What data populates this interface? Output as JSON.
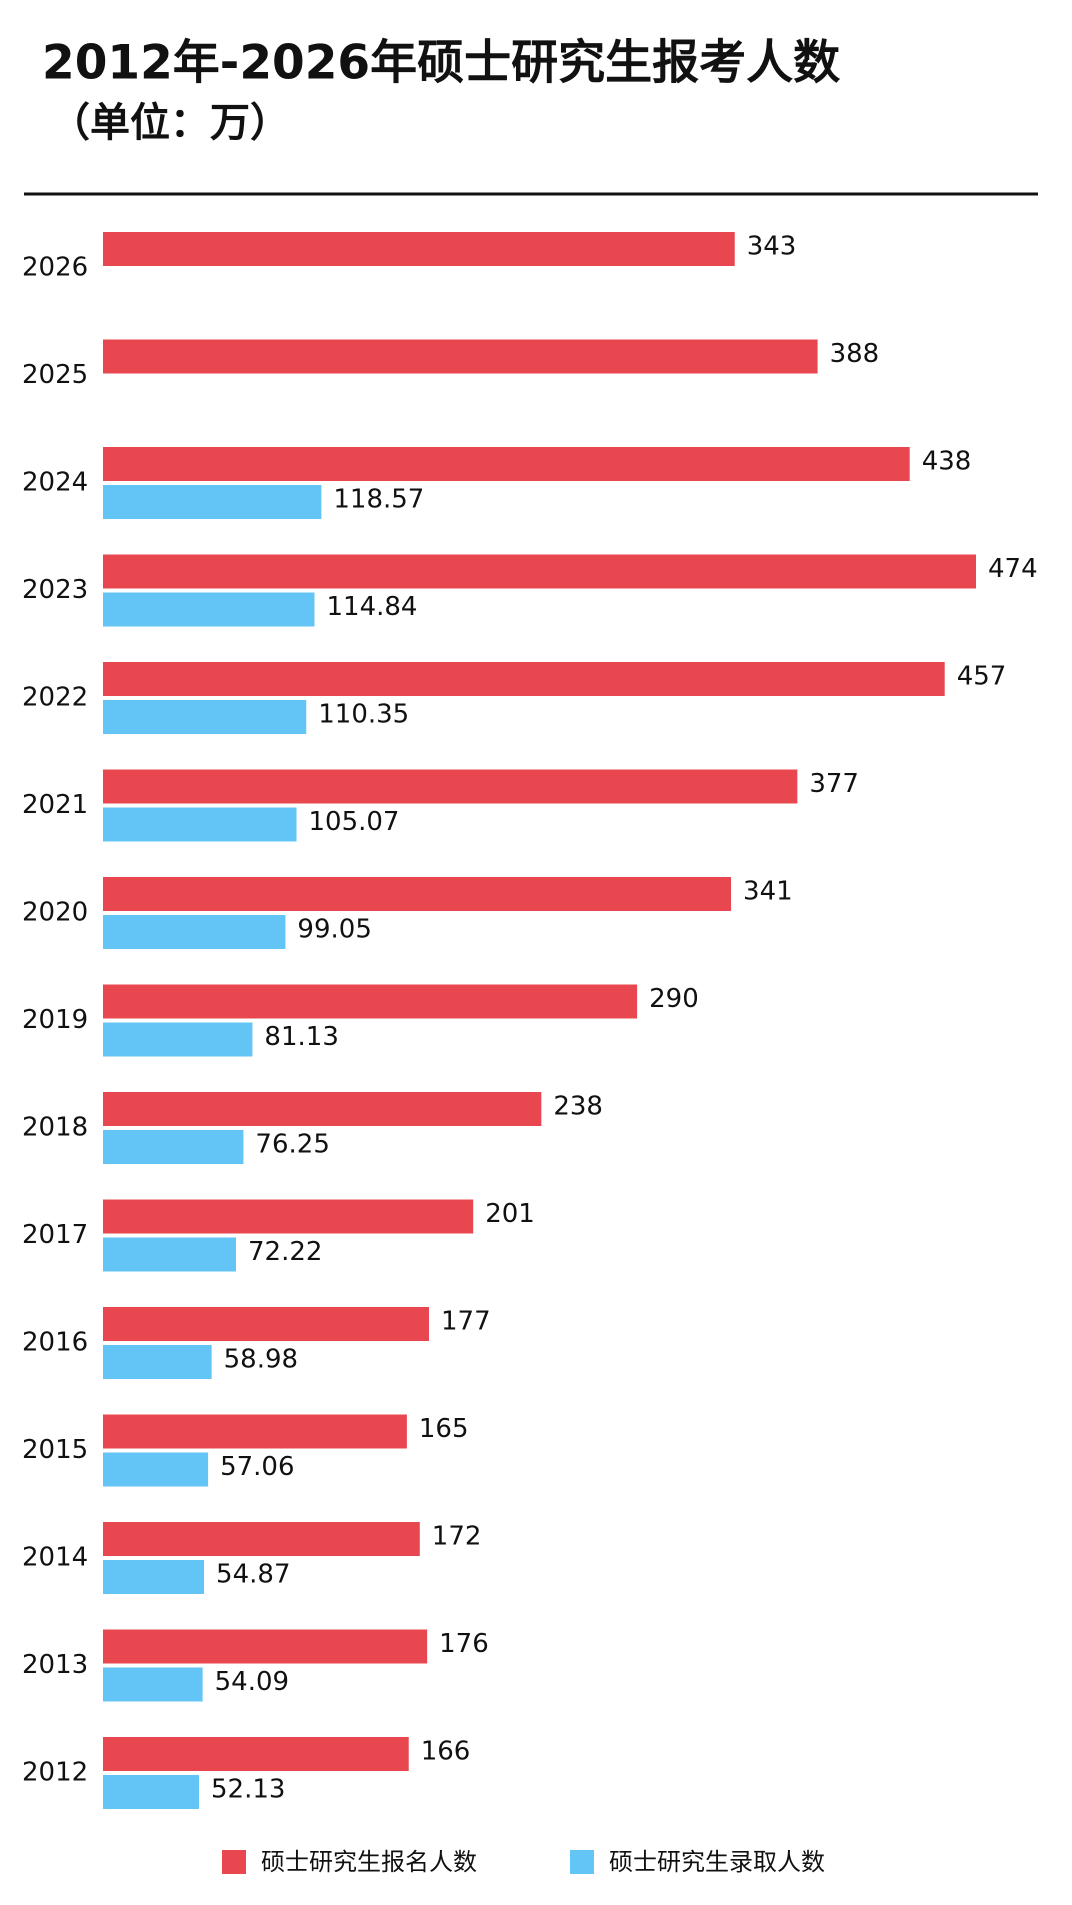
{
  "chart_data": {
    "type": "hbar",
    "title": "2012年-2026年硕士研究生报考人数",
    "subtitle": "（单位：万）",
    "categories": [
      "2026",
      "2025",
      "2024",
      "2023",
      "2022",
      "2021",
      "2020",
      "2019",
      "2018",
      "2017",
      "2016",
      "2015",
      "2014",
      "2013",
      "2012"
    ],
    "series": [
      {
        "name": "硕士研究生报名人数",
        "color": "#e8474f",
        "values": [
          343,
          388,
          438,
          474,
          457,
          377,
          341,
          290,
          238,
          201,
          177,
          165,
          172,
          176,
          166
        ]
      },
      {
        "name": "硕士研究生录取人数",
        "color": "#63c5f5",
        "values": [
          null,
          null,
          118.57,
          114.84,
          110.35,
          105.07,
          99.05,
          81.13,
          76.25,
          72.22,
          58.98,
          57.06,
          54.87,
          54.09,
          52.13
        ]
      }
    ]
  }
}
